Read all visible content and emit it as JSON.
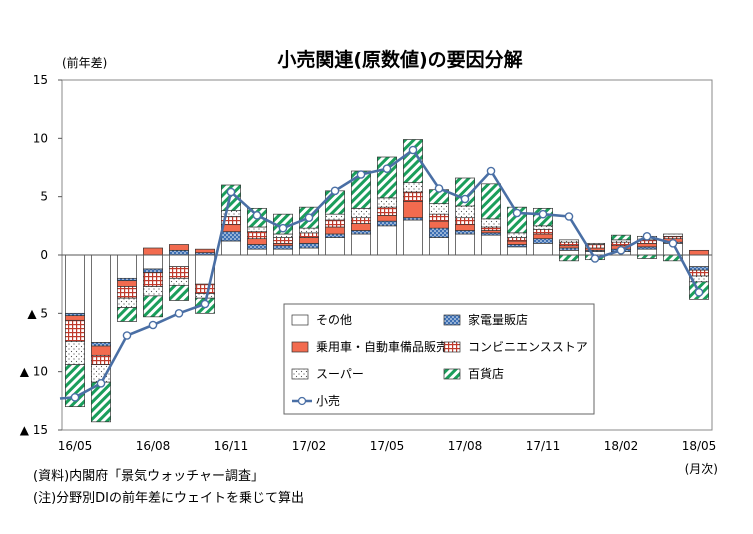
{
  "chart_data": {
    "type": "bar",
    "title": "小売関連(原数値)の要因分解",
    "ylabel": "(前年差)",
    "xunit": "(月次)",
    "ylim": [
      -15,
      15
    ],
    "yticks": [
      15,
      10,
      5,
      0,
      -5,
      -10,
      -15
    ],
    "ytick_labels": [
      "15",
      "10",
      "5",
      "0",
      "▲ 5",
      "▲ 10",
      "▲ 15"
    ],
    "x_tick_labels": [
      "16/05",
      "16/08",
      "16/11",
      "17/02",
      "17/05",
      "17/08",
      "17/11",
      "18/02",
      "18/05"
    ],
    "x_tick_positions": [
      0,
      3,
      6,
      9,
      12,
      15,
      18,
      21,
      24
    ],
    "categories": [
      "16/05",
      "16/06",
      "16/07",
      "16/08",
      "16/09",
      "16/10",
      "16/11",
      "16/12",
      "17/01",
      "17/02",
      "17/03",
      "17/04",
      "17/05",
      "17/06",
      "17/07",
      "17/08",
      "17/09",
      "17/10",
      "17/11",
      "17/12",
      "18/01",
      "18/02",
      "18/03",
      "18/04",
      "18/05"
    ],
    "series": [
      {
        "name": "その他",
        "kind": "bar",
        "color": "#ffffff",
        "pattern": "none",
        "values": [
          -5.0,
          -7.5,
          -2.0,
          -1.2,
          -1.0,
          -2.5,
          1.2,
          0.5,
          0.5,
          0.6,
          1.5,
          1.8,
          2.5,
          3.0,
          1.5,
          1.8,
          1.7,
          0.7,
          1.0,
          0.4,
          0.3,
          0.3,
          0.5,
          1.0,
          -1.0
        ]
      },
      {
        "name": "家電量販店",
        "kind": "bar",
        "color": "#1f4e8c",
        "pattern": "dots",
        "values": [
          -0.2,
          -0.3,
          -0.2,
          -0.3,
          0.4,
          0.2,
          0.8,
          0.4,
          0.3,
          0.4,
          0.3,
          0.3,
          0.4,
          0.2,
          0.8,
          0.3,
          0.2,
          0.2,
          0.4,
          0.2,
          0.1,
          0.2,
          0.2,
          0.1,
          -0.3
        ]
      },
      {
        "name": "乗用車・自動車備品販売店",
        "kind": "bar",
        "color": "#f26b4f",
        "pattern": "solid",
        "values": [
          -0.4,
          -0.8,
          -0.5,
          0.6,
          0.5,
          0.3,
          0.6,
          0.5,
          0.2,
          0.5,
          0.6,
          0.6,
          0.5,
          1.4,
          0.6,
          0.5,
          0.2,
          0.3,
          0.4,
          0.2,
          0.2,
          0.3,
          0.3,
          0.3,
          0.4
        ]
      },
      {
        "name": "コンビニエンスストア",
        "kind": "bar",
        "color": "#c0392b",
        "pattern": "grid",
        "values": [
          -1.8,
          -0.8,
          -1.0,
          -1.2,
          -1.0,
          -0.8,
          0.7,
          0.6,
          0.5,
          0.4,
          0.6,
          0.5,
          0.7,
          0.8,
          0.6,
          0.6,
          0.3,
          0.3,
          0.4,
          0.3,
          0.3,
          0.3,
          0.3,
          0.2,
          -0.5
        ]
      },
      {
        "name": "スーパー",
        "kind": "bar",
        "color": "#ffffff",
        "pattern": "dots-sparse",
        "values": [
          -2.0,
          -1.5,
          -0.8,
          -0.8,
          -0.6,
          -0.4,
          0.5,
          0.4,
          0.3,
          0.4,
          0.5,
          0.8,
          0.8,
          0.8,
          0.9,
          1.0,
          0.7,
          0.4,
          0.3,
          0.2,
          0.1,
          0.2,
          0.3,
          0.2,
          -0.5
        ]
      },
      {
        "name": "百貨店",
        "kind": "bar",
        "color": "#1a9e5b",
        "pattern": "hatch",
        "values": [
          -3.6,
          -3.4,
          -1.2,
          -1.8,
          -1.3,
          -1.3,
          2.2,
          1.6,
          1.7,
          1.8,
          2.0,
          3.2,
          3.5,
          3.7,
          1.2,
          2.4,
          3.0,
          2.2,
          1.5,
          -0.5,
          -0.4,
          0.4,
          -0.3,
          -0.5,
          -1.5
        ]
      },
      {
        "name": "小売",
        "kind": "line",
        "color": "#4a6fa5",
        "values": [
          -12.2,
          -11.0,
          -6.9,
          -6.0,
          -5.0,
          -4.2,
          5.4,
          3.4,
          2.3,
          3.2,
          5.5,
          6.9,
          7.4,
          9.0,
          5.7,
          4.8,
          7.2,
          3.6,
          3.5,
          3.3,
          -0.3,
          0.4,
          1.6,
          1.0,
          -3.2
        ]
      }
    ],
    "legend": "inside-bottom-right"
  },
  "notes": [
    "(資料)内閣府「景気ウォッチャー調査」",
    "(注)分野別DIの前年差にウェイトを乗じて算出"
  ]
}
